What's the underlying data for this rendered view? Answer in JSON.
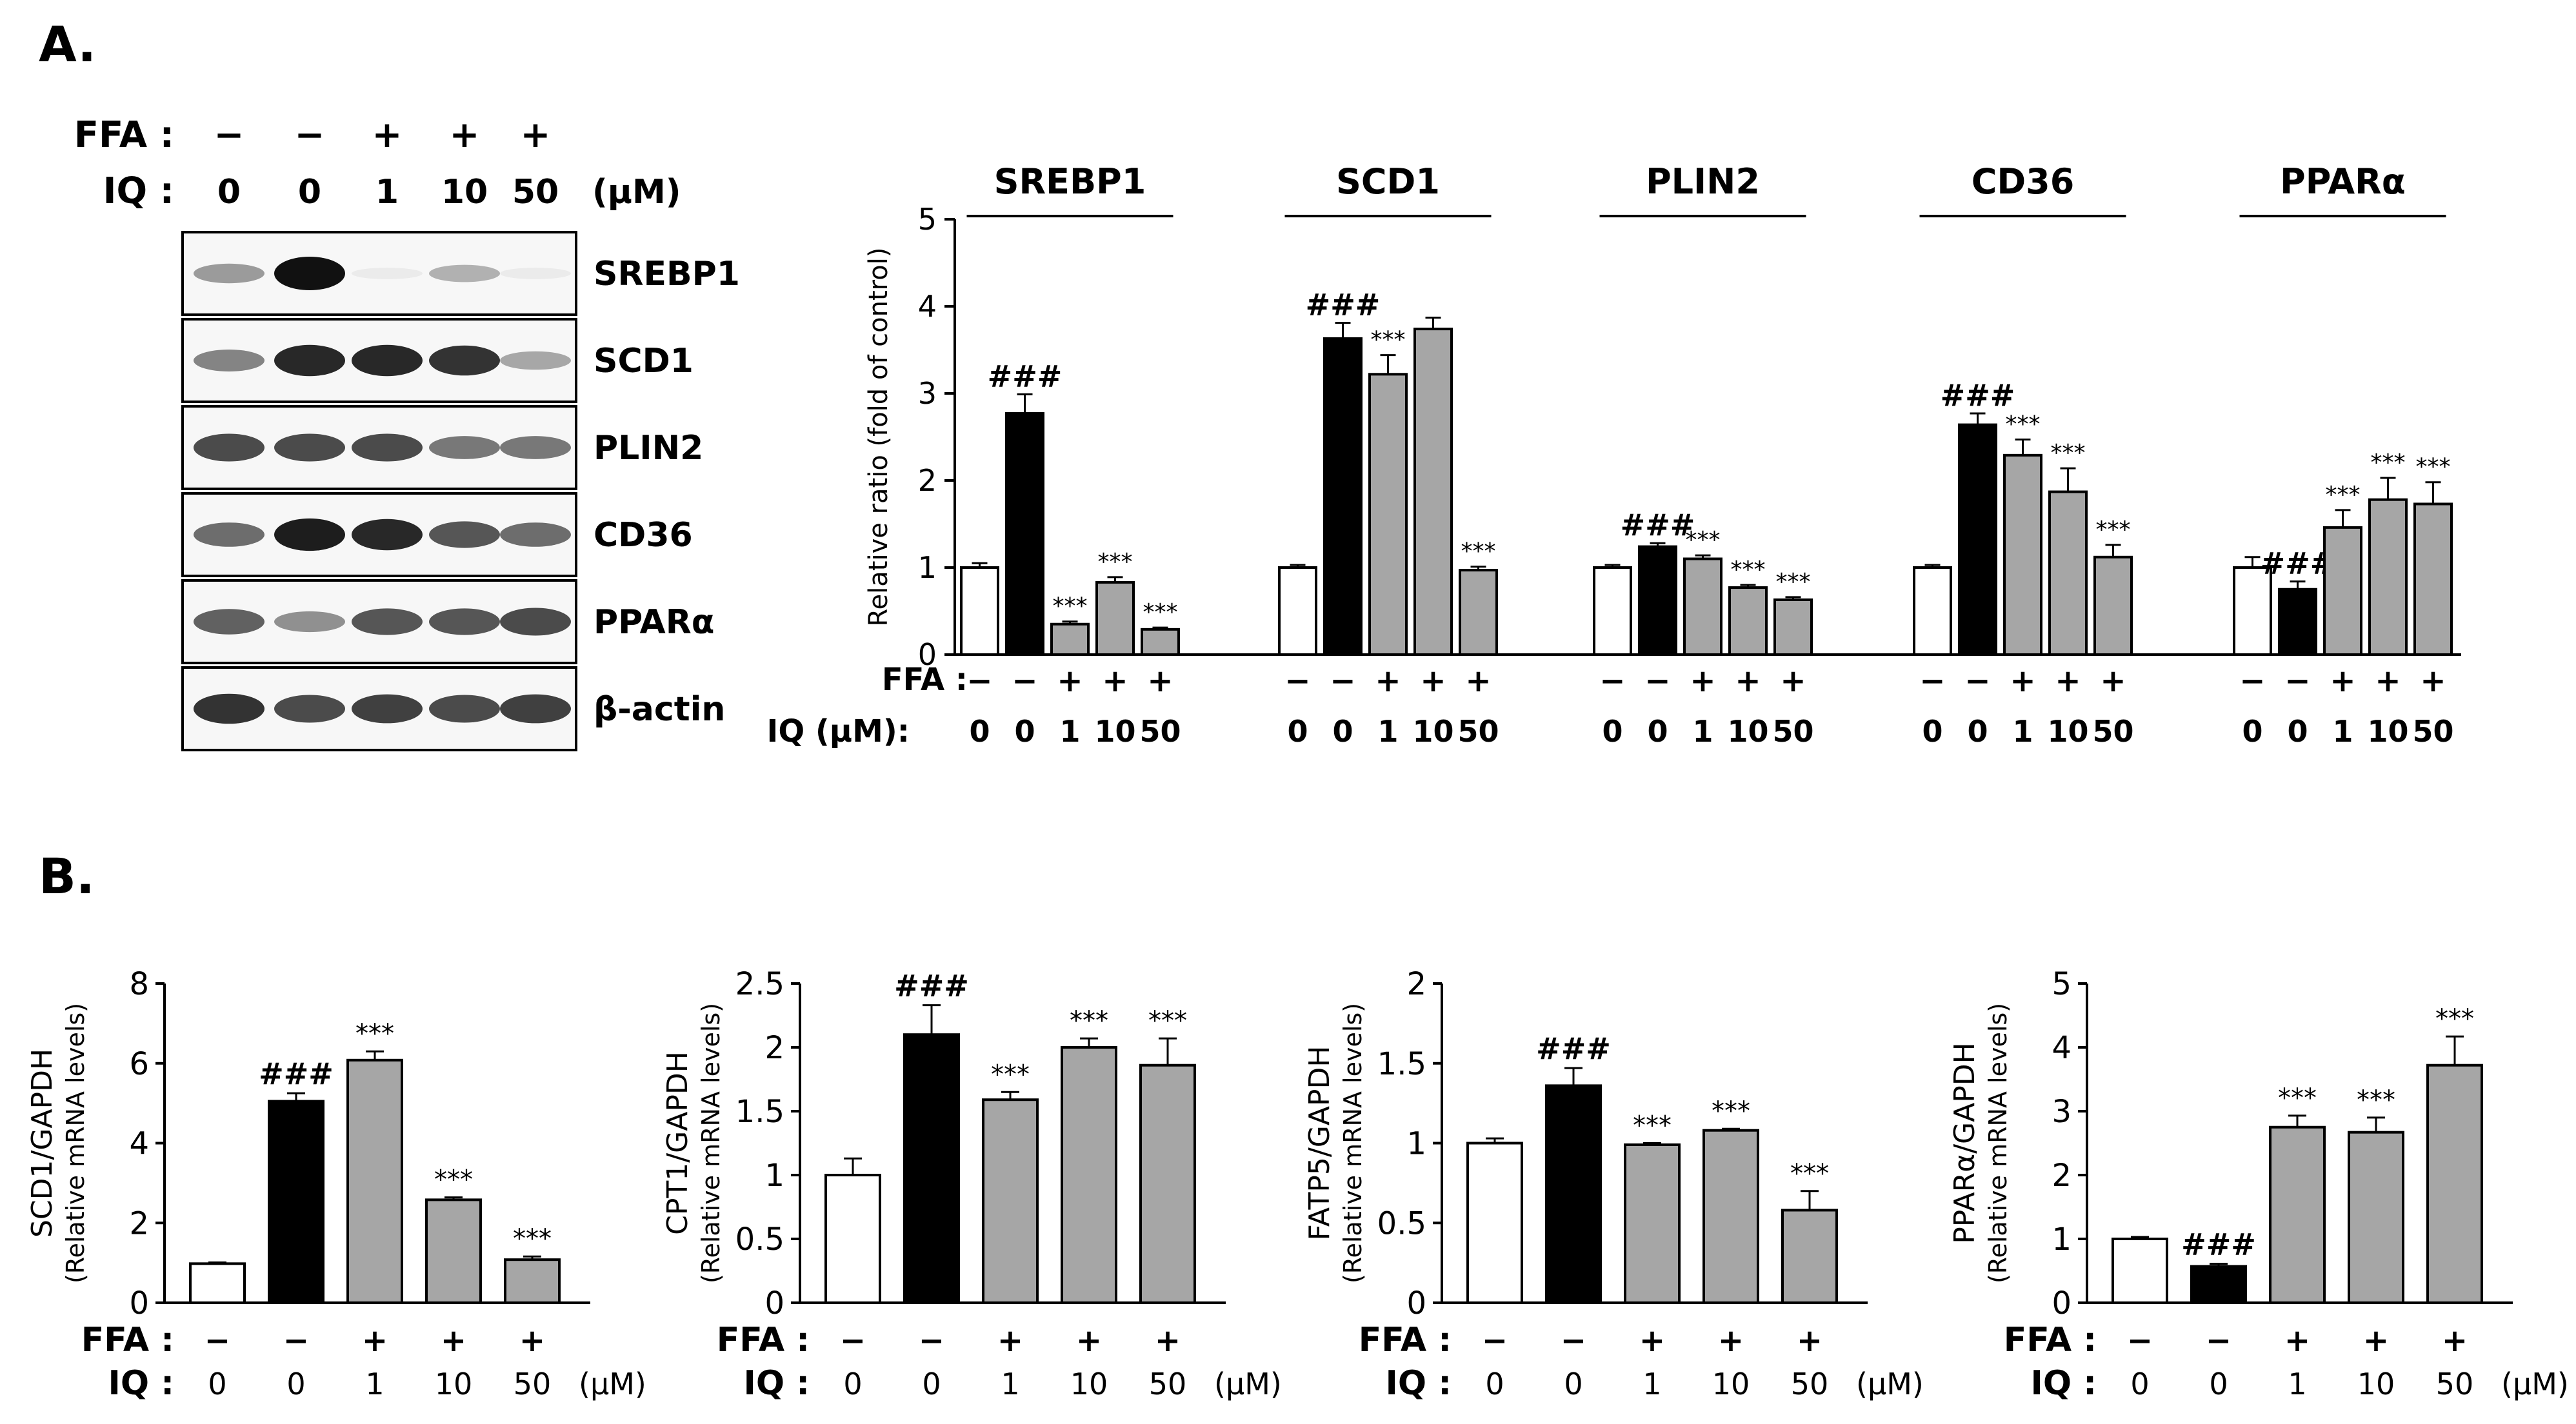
{
  "panel_labels": {
    "a": "A.",
    "b": "B."
  },
  "western_blot": {
    "ffa_label": "FFA :",
    "iq_label": "IQ :",
    "unit": "(μM)",
    "ffa_signs": [
      "−",
      "−",
      "+",
      "+",
      "+"
    ],
    "iq_values": [
      "0",
      "0",
      "1",
      "10",
      "50"
    ],
    "bands": [
      "SREBP1",
      "SCD1",
      "PLIN2",
      "CD36",
      "PPARα",
      "β-actin"
    ],
    "band_intensities": [
      [
        0.4,
        1.0,
        0.05,
        0.3,
        0.05
      ],
      [
        0.5,
        0.9,
        0.9,
        0.85,
        0.35
      ],
      [
        0.75,
        0.75,
        0.75,
        0.55,
        0.55
      ],
      [
        0.6,
        0.95,
        0.9,
        0.7,
        0.6
      ],
      [
        0.65,
        0.45,
        0.7,
        0.7,
        0.75
      ],
      [
        0.85,
        0.75,
        0.8,
        0.75,
        0.8
      ]
    ]
  },
  "legend": {
    "ffa_label": "FFA :",
    "iq_label": "IQ (μM):",
    "b_ffa_label": "FFA :",
    "b_iq_label": "IQ :",
    "b_unit": "(μM)"
  },
  "chart_data": [
    {
      "type": "bar",
      "title": "",
      "ylabel": "Relative ratio (fold of control)",
      "ylim": [
        0,
        5
      ],
      "yticks": [
        "0",
        "1",
        "2",
        "3",
        "4",
        "5"
      ],
      "ffa": [
        "−",
        "−",
        "+",
        "+",
        "+"
      ],
      "iq": [
        "0",
        "0",
        "1",
        "10",
        "50"
      ],
      "groups": [
        {
          "name": "SREBP1",
          "values": [
            1.0,
            2.77,
            0.35,
            0.83,
            0.29
          ],
          "errors": [
            0.05,
            0.22,
            0.03,
            0.06,
            0.02
          ],
          "marks": [
            "",
            "###",
            "***",
            "***",
            "***"
          ]
        },
        {
          "name": "SCD1",
          "values": [
            1.0,
            3.63,
            3.22,
            3.74,
            0.97
          ],
          "errors": [
            0.03,
            0.18,
            0.22,
            0.13,
            0.04
          ],
          "marks": [
            "",
            "###",
            "***",
            "",
            "***"
          ]
        },
        {
          "name": "PLIN2",
          "values": [
            1.0,
            1.24,
            1.1,
            0.77,
            0.63
          ],
          "errors": [
            0.03,
            0.04,
            0.04,
            0.03,
            0.03
          ],
          "marks": [
            "",
            "###",
            "***",
            "***",
            "***"
          ]
        },
        {
          "name": "CD36",
          "values": [
            1.0,
            2.64,
            2.29,
            1.87,
            1.12
          ],
          "errors": [
            0.03,
            0.13,
            0.18,
            0.27,
            0.14
          ],
          "marks": [
            "",
            "###",
            "***",
            "***",
            "***"
          ]
        },
        {
          "name": "PPARα",
          "values": [
            1.0,
            0.75,
            1.46,
            1.78,
            1.73
          ],
          "errors": [
            0.12,
            0.09,
            0.2,
            0.25,
            0.25
          ],
          "marks": [
            "",
            "###",
            "***",
            "***",
            "***"
          ]
        }
      ]
    },
    {
      "type": "bar",
      "title": "",
      "ylabel": "SCD1/GAPDH",
      "ylabel2": "(Relative mRNA levels)",
      "ylim": [
        0,
        8
      ],
      "yticks": [
        "0",
        "2",
        "4",
        "6",
        "8"
      ],
      "ffa": [
        "−",
        "−",
        "+",
        "+",
        "+"
      ],
      "iq": [
        "0",
        "0",
        "1",
        "10",
        "50"
      ],
      "values": [
        0.98,
        5.05,
        6.08,
        2.58,
        1.08
      ],
      "errors": [
        0.03,
        0.2,
        0.22,
        0.06,
        0.08
      ],
      "marks": [
        "",
        "###",
        "***",
        "***",
        "***"
      ]
    },
    {
      "type": "bar",
      "title": "",
      "ylabel": "CPT1/GAPDH",
      "ylabel2": "(Relative mRNA levels)",
      "ylim": [
        0,
        2.5
      ],
      "yticks": [
        "0",
        "0.5",
        "1",
        "1.5",
        "2",
        "2.5"
      ],
      "ffa": [
        "−",
        "−",
        "+",
        "+",
        "+"
      ],
      "iq": [
        "0",
        "0",
        "1",
        "10",
        "50"
      ],
      "values": [
        1.0,
        2.1,
        1.59,
        2.0,
        1.86
      ],
      "errors": [
        0.13,
        0.23,
        0.06,
        0.07,
        0.21
      ],
      "marks": [
        "",
        "###",
        "***",
        "***",
        "***"
      ]
    },
    {
      "type": "bar",
      "title": "",
      "ylabel": "FATP5/GAPDH",
      "ylabel2": "(Relative mRNA levels)",
      "ylim": [
        0,
        2
      ],
      "yticks": [
        "0",
        "0.5",
        "1",
        "1.5",
        "2"
      ],
      "ffa": [
        "−",
        "−",
        "+",
        "+",
        "+"
      ],
      "iq": [
        "0",
        "0",
        "1",
        "10",
        "50"
      ],
      "values": [
        1.0,
        1.36,
        0.99,
        1.08,
        0.58
      ],
      "errors": [
        0.03,
        0.11,
        0.01,
        0.01,
        0.12
      ],
      "marks": [
        "",
        "###",
        "***",
        "***",
        "***"
      ]
    },
    {
      "type": "bar",
      "title": "",
      "ylabel": "PPARα/GAPDH",
      "ylabel2": "(Relative mRNA levels)",
      "ylim": [
        0,
        5
      ],
      "yticks": [
        "0",
        "1",
        "2",
        "3",
        "4",
        "5"
      ],
      "ffa": [
        "−",
        "−",
        "+",
        "+",
        "+"
      ],
      "iq": [
        "0",
        "0",
        "1",
        "10",
        "50"
      ],
      "values": [
        1.0,
        0.57,
        2.75,
        2.67,
        3.72
      ],
      "errors": [
        0.03,
        0.04,
        0.18,
        0.23,
        0.45
      ],
      "marks": [
        "",
        "###",
        "***",
        "***",
        "***"
      ]
    }
  ],
  "colors": {
    "control": "#ffffff",
    "ffa": "#000000",
    "treated": "#a6a6a6",
    "axis": "#000000",
    "blot_bg": "#f7f7f7",
    "band": "#111111"
  }
}
